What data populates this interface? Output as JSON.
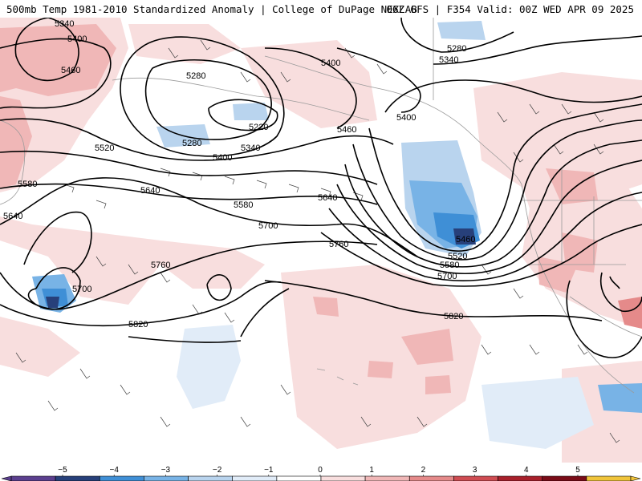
{
  "header": {
    "title": "500mb Temp 1981-2010 Standardized Anomaly | College of DuPage NEXLAB",
    "run_info": "06Z GFS | F354 Valid: 00Z WED APR 09 2025"
  },
  "contours": {
    "labels": [
      "5340",
      "5400",
      "5460",
      "5520",
      "5580",
      "5640",
      "5700",
      "5760",
      "5820",
      "5280",
      "5220",
      "5280",
      "5340",
      "5400",
      "5460",
      "5400",
      "5340",
      "5280",
      "5400",
      "5460",
      "5520",
      "5580",
      "5640",
      "5700",
      "5760",
      "5820",
      "5580",
      "5700",
      "5640"
    ]
  },
  "colorbar": {
    "ticks": [
      "−5",
      "−4",
      "−3",
      "−2",
      "−1",
      "0",
      "1",
      "2",
      "3",
      "4",
      "5"
    ],
    "colors": [
      "#5b3f8f",
      "#27407a",
      "#3f8fd6",
      "#78b3e6",
      "#b9d4ee",
      "#e1ecf8",
      "#ffffff",
      "#f8dede",
      "#f0b7b7",
      "#e58a8a",
      "#cf4c52",
      "#a8202b",
      "#7a0c18",
      "#f0c43a"
    ]
  }
}
